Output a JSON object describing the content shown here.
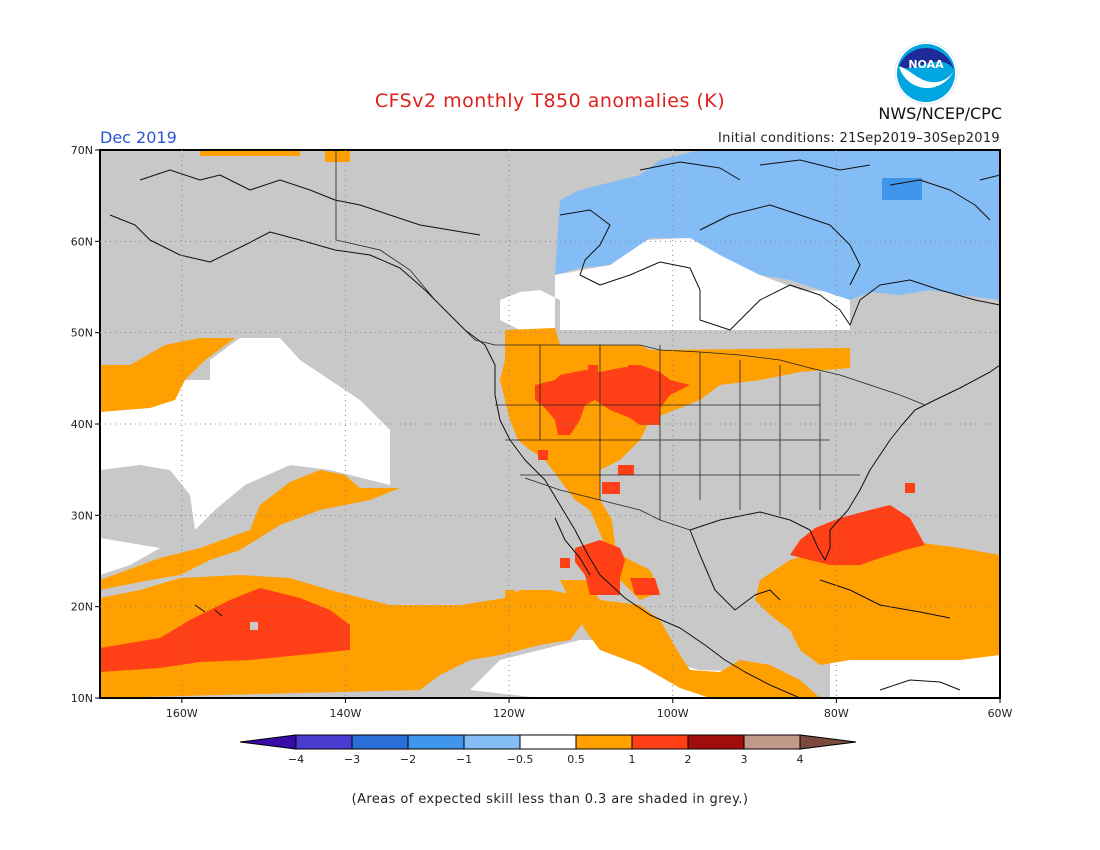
{
  "title": "CFSv2 monthly T850 anomalies (K)",
  "month": "Dec 2019",
  "init_conditions": "Initial conditions: 21Sep2019–30Sep2019",
  "organization": "NWS/NCEP/CPC",
  "logo": {
    "text": "NOAA",
    "icon": "noaa-logo-icon"
  },
  "note": "(Areas of expected skill less than 0.3 are shaded in grey.)",
  "map": {
    "lon_range": [
      -170,
      -60
    ],
    "lat_range": [
      10,
      70
    ],
    "lat_ticks": [
      "70N",
      "60N",
      "50N",
      "40N",
      "30N",
      "20N",
      "10N"
    ],
    "lon_ticks": [
      "160W",
      "140W",
      "120W",
      "100W",
      "80W",
      "60W"
    ],
    "grid_color": "#888888",
    "skill_mask_color": "#c8c8c8"
  },
  "colorbar": {
    "colors": [
      "#3a0aa8",
      "#4a3cd0",
      "#2a6ed8",
      "#3f96ea",
      "#84bcf6",
      "#ffffff",
      "#ff9f00",
      "#ff4016",
      "#a10d0d",
      "#c3998a",
      "#7a4a3c"
    ],
    "labels": [
      "−4",
      "−3",
      "−2",
      "−1",
      "−0.5",
      "0.5",
      "1",
      "2",
      "3",
      "4"
    ]
  }
}
